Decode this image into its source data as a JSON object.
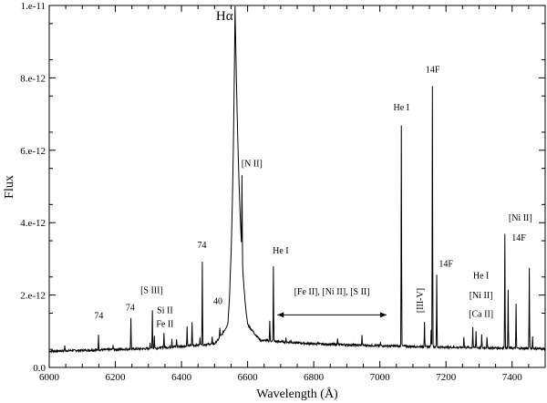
{
  "chart_data": {
    "type": "line",
    "title": "",
    "xlabel": "Wavelength  (Å)",
    "ylabel": "Flux",
    "xlim": [
      6000,
      7500
    ],
    "ylim": [
      0,
      1e-11
    ],
    "x_ticks": [
      6000,
      6200,
      6400,
      6600,
      6800,
      7000,
      7200,
      7400
    ],
    "x_tick_labels": [
      "6000",
      "6200",
      "6400",
      "6600",
      "6800",
      "7000",
      "7200",
      "7400"
    ],
    "y_ticks": [
      0,
      2e-12,
      4e-12,
      6e-12,
      8e-12,
      1e-11
    ],
    "y_tick_labels": [
      "0.0",
      "2.e-12",
      "4.e-12",
      "6.e-12",
      "8.e-12",
      "1.e-11"
    ],
    "continuum": [
      [
        6000,
        4.5e-13
      ],
      [
        6300,
        5.2e-13
      ],
      [
        6500,
        6.5e-13
      ],
      [
        6540,
        1.2e-12
      ],
      [
        6562,
        1e-11
      ],
      [
        6600,
        1.2e-12
      ],
      [
        6640,
        7.5e-13
      ],
      [
        6800,
        6.5e-13
      ],
      [
        7000,
        6e-13
      ],
      [
        7200,
        5.6e-13
      ],
      [
        7500,
        5.2e-13
      ]
    ],
    "lines": [
      {
        "x": 6047,
        "y": 6.2e-13
      },
      {
        "x": 6149,
        "y": 8.8e-13
      },
      {
        "x": 6193,
        "y": 6.3e-13
      },
      {
        "x": 6247,
        "y": 1.38e-12
      },
      {
        "x": 6305,
        "y": 6.9e-13
      },
      {
        "x": 6312,
        "y": 1.58e-12
      },
      {
        "x": 6318,
        "y": 8.7e-13
      },
      {
        "x": 6347,
        "y": 9.8e-13
      },
      {
        "x": 6371,
        "y": 8e-13
      },
      {
        "x": 6385,
        "y": 7.9e-13
      },
      {
        "x": 6417,
        "y": 1.12e-12
      },
      {
        "x": 6432,
        "y": 1.27e-12
      },
      {
        "x": 6456,
        "y": 8.5e-13
      },
      {
        "x": 6463,
        "y": 2.94e-12
      },
      {
        "x": 6493,
        "y": 8.3e-13
      },
      {
        "x": 6516,
        "y": 1.09e-12
      },
      {
        "x": 6548,
        "y": 2.7e-12
      },
      {
        "x": 6583,
        "y": 5.3e-12
      },
      {
        "x": 6667,
        "y": 1.3e-12
      },
      {
        "x": 6678,
        "y": 2.78e-12
      },
      {
        "x": 6716,
        "y": 8e-13
      },
      {
        "x": 6731,
        "y": 7.6e-13
      },
      {
        "x": 6813,
        "y": 7.4e-13
      },
      {
        "x": 6872,
        "y": 8.2e-13
      },
      {
        "x": 6946,
        "y": 8.8e-13
      },
      {
        "x": 7002,
        "y": 6.9e-13
      },
      {
        "x": 7065,
        "y": 6.7e-12
      },
      {
        "x": 7135,
        "y": 1.28e-12
      },
      {
        "x": 7155,
        "y": 1.02e-12
      },
      {
        "x": 7159,
        "y": 7.8e-12
      },
      {
        "x": 7172,
        "y": 2.55e-12
      },
      {
        "x": 7254,
        "y": 8.6e-13
      },
      {
        "x": 7281,
        "y": 1.12e-12
      },
      {
        "x": 7291,
        "y": 1e-12
      },
      {
        "x": 7308,
        "y": 9e-13
      },
      {
        "x": 7324,
        "y": 8.6e-13
      },
      {
        "x": 7378,
        "y": 3.72e-12
      },
      {
        "x": 7388,
        "y": 2.12e-12
      },
      {
        "x": 7412,
        "y": 1.74e-12
      },
      {
        "x": 7452,
        "y": 2.75e-12
      },
      {
        "x": 7462,
        "y": 8.5e-13
      }
    ],
    "annotations": [
      {
        "text": "Hα",
        "x": 6530,
        "y": 9.6e-12,
        "size": "big"
      },
      {
        "text": "74",
        "x": 6150,
        "y": 1.35e-12
      },
      {
        "text": "74",
        "x": 6245,
        "y": 1.58e-12
      },
      {
        "text": "[S III]",
        "x": 6310,
        "y": 2.05e-12
      },
      {
        "text": "Si II",
        "x": 6350,
        "y": 1.5e-12
      },
      {
        "text": "Fe II",
        "x": 6350,
        "y": 1.12e-12
      },
      {
        "text": "74",
        "x": 6462,
        "y": 3.3e-12
      },
      {
        "text": "40",
        "x": 6510,
        "y": 1.75e-12
      },
      {
        "text": "[N II]",
        "x": 6613,
        "y": 5.55e-12
      },
      {
        "text": "He I",
        "x": 6700,
        "y": 3.15e-12
      },
      {
        "text": "[Fe II], [Ni II], [S II]",
        "x": 6855,
        "y": 2.02e-12
      },
      {
        "text": "He I",
        "x": 7065,
        "y": 7.1e-12
      },
      {
        "text": "14F",
        "x": 7160,
        "y": 8.15e-12
      },
      {
        "text": "14F",
        "x": 7200,
        "y": 2.78e-12
      },
      {
        "text": "[III-V]",
        "x": 7130,
        "y": 1.85e-12,
        "rotate": true
      },
      {
        "text": "He I",
        "x": 7306,
        "y": 2.45e-12
      },
      {
        "text": "[Ni II]",
        "x": 7306,
        "y": 1.92e-12
      },
      {
        "text": "[Ca II]",
        "x": 7306,
        "y": 1.4e-12
      },
      {
        "text": "[Ni II]",
        "x": 7425,
        "y": 4.05e-12
      },
      {
        "text": "14F",
        "x": 7420,
        "y": 3.5e-12
      }
    ],
    "arrow": {
      "x1": 6690,
      "x2": 7020,
      "y": 1.45e-12
    }
  }
}
